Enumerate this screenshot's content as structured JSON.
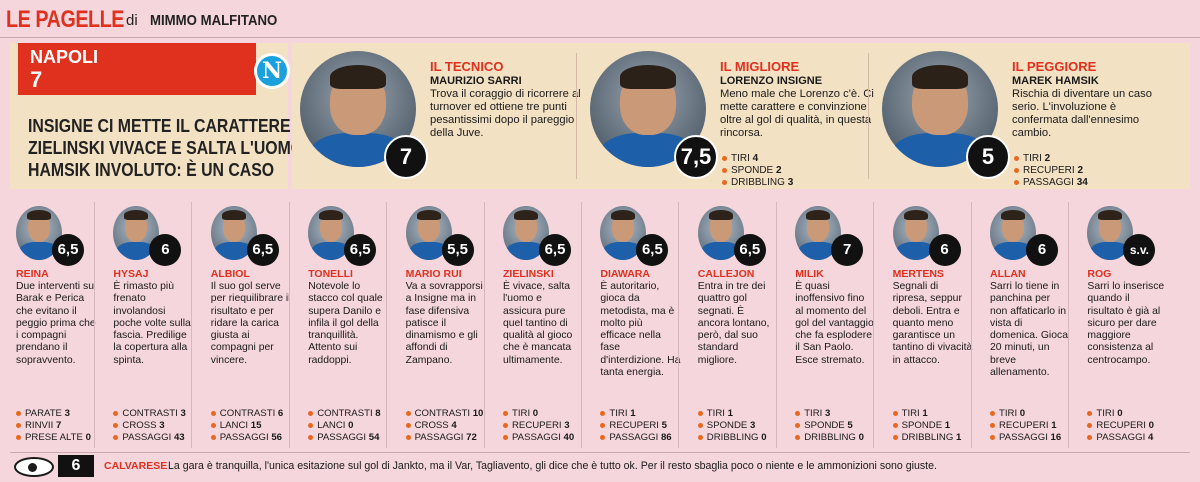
{
  "header": {
    "title": "LE PAGELLE",
    "by": "di",
    "author": "MIMMO MALFITANO"
  },
  "team": {
    "name": "NAPOLI",
    "vote": "7",
    "crest_letter": "N",
    "crest_color": "#1aa0dc",
    "headline": [
      "INSIGNE CI METTE IL CARATTERE",
      "ZIELINSKI VIVACE E SALTA L'UOMO",
      "HAMSIK INVOLUTO: È UN CASO"
    ]
  },
  "tops": [
    {
      "role": "IL TECNICO",
      "name": "MAURIZIO SARRI",
      "vote": "7",
      "desc": "Trova il coraggio di ricorrere al turnover ed ottiene tre punti pesantissimi dopo il pareggio della Juve.",
      "stats": []
    },
    {
      "role": "IL MIGLIORE",
      "name": "LORENZO INSIGNE",
      "vote": "7,5",
      "desc": "Meno male che Lorenzo c'è. Ci mette carattere e convinzione oltre al gol di qualità, in questa rincorsa.",
      "stats": [
        {
          "label": "TIRI",
          "value": "4"
        },
        {
          "label": "SPONDE",
          "value": "2"
        },
        {
          "label": "DRIBBLING",
          "value": "3"
        }
      ]
    },
    {
      "role": "IL PEGGIORE",
      "name": "MAREK HAMSIK",
      "vote": "5",
      "desc": "Rischia di diventare un caso serio. L'involuzione è confermata dall'ennesimo cambio.",
      "stats": [
        {
          "label": "TIRI",
          "value": "2"
        },
        {
          "label": "RECUPERI",
          "value": "2"
        },
        {
          "label": "PASSAGGI",
          "value": "34"
        }
      ]
    }
  ],
  "players": [
    {
      "name": "REINA",
      "vote": "6,5",
      "desc": "Due interventi su Barak e Perica che evitano il peggio prima che i compagni prendano il sopravvento.",
      "stats": [
        {
          "label": "PARATE",
          "value": "3"
        },
        {
          "label": "RINVII",
          "value": "7"
        },
        {
          "label": "PRESE ALTE",
          "value": "0"
        }
      ]
    },
    {
      "name": "HYSAJ",
      "vote": "6",
      "desc": "È rimasto più frenato involandosi poche volte sulla fascia. Predilige la copertura alla spinta.",
      "stats": [
        {
          "label": "CONTRASTI",
          "value": "3"
        },
        {
          "label": "CROSS",
          "value": "3"
        },
        {
          "label": "PASSAGGI",
          "value": "43"
        }
      ]
    },
    {
      "name": "ALBIOL",
      "vote": "6,5",
      "desc": "Il suo gol serve per riequilibrare il risultato e per ridare la carica giusta ai compagni per vincere.",
      "stats": [
        {
          "label": "CONTRASTI",
          "value": "6"
        },
        {
          "label": "LANCI",
          "value": "15"
        },
        {
          "label": "PASSAGGI",
          "value": "56"
        }
      ]
    },
    {
      "name": "TONELLI",
      "vote": "6,5",
      "desc": "Notevole lo stacco col quale supera Danilo e infila il gol della tranquillità. Attento sui raddoppi.",
      "stats": [
        {
          "label": "CONTRASTI",
          "value": "8"
        },
        {
          "label": "LANCI",
          "value": "0"
        },
        {
          "label": "PASSAGGI",
          "value": "54"
        }
      ]
    },
    {
      "name": "MARIO RUI",
      "vote": "5,5",
      "desc": "Va a sovrapporsi a Insigne ma in fase difensiva patisce il dinamismo e gli affondi di Zampano.",
      "stats": [
        {
          "label": "CONTRASTI",
          "value": "10"
        },
        {
          "label": "CROSS",
          "value": "4"
        },
        {
          "label": "PASSAGGI",
          "value": "72"
        }
      ]
    },
    {
      "name": "ZIELINSKI",
      "vote": "6,5",
      "desc": "È vivace, salta l'uomo e assicura pure quel tantino di qualità al gioco che è mancata ultimamente.",
      "stats": [
        {
          "label": "TIRI",
          "value": "0"
        },
        {
          "label": "RECUPERI",
          "value": "3"
        },
        {
          "label": "PASSAGGI",
          "value": "40"
        }
      ]
    },
    {
      "name": "DIAWARA",
      "vote": "6,5",
      "desc": "È autoritario, gioca da metodista, ma è molto più efficace nella fase d'interdizione. Ha tanta energia.",
      "stats": [
        {
          "label": "TIRI",
          "value": "1"
        },
        {
          "label": "RECUPERI",
          "value": "5"
        },
        {
          "label": "PASSAGGI",
          "value": "86"
        }
      ]
    },
    {
      "name": "CALLEJON",
      "vote": "6,5",
      "desc": "Entra in tre dei quattro gol segnati. È ancora lontano, però, dal suo standard migliore.",
      "stats": [
        {
          "label": "TIRI",
          "value": "1"
        },
        {
          "label": "SPONDE",
          "value": "3"
        },
        {
          "label": "DRIBBLING",
          "value": "0"
        }
      ]
    },
    {
      "name": "MILIK",
      "vote": "7",
      "desc": "È quasi inoffensivo fino al momento del gol del vantaggio che fa esplodere il San Paolo. Esce stremato.",
      "stats": [
        {
          "label": "TIRI",
          "value": "3"
        },
        {
          "label": "SPONDE",
          "value": "5"
        },
        {
          "label": "DRIBBLING",
          "value": "0"
        }
      ]
    },
    {
      "name": "MERTENS",
      "vote": "6",
      "desc": "Segnali di ripresa, seppur deboli. Entra e quanto meno garantisce un tantino di vivacità in attacco.",
      "stats": [
        {
          "label": "TIRI",
          "value": "1"
        },
        {
          "label": "SPONDE",
          "value": "1"
        },
        {
          "label": "DRIBBLING",
          "value": "1"
        }
      ]
    },
    {
      "name": "ALLAN",
      "vote": "6",
      "desc": "Sarri lo tiene in panchina per non affaticarlo in vista di domenica. Gioca 20 minuti, un breve allenamento.",
      "stats": [
        {
          "label": "TIRI",
          "value": "0"
        },
        {
          "label": "RECUPERI",
          "value": "1"
        },
        {
          "label": "PASSAGGI",
          "value": "16"
        }
      ]
    },
    {
      "name": "ROG",
      "vote": "s.v.",
      "desc": "Sarri lo inserisce quando il risultato è già al sicuro per dare maggiore consistenza al centrocampo.",
      "stats": [
        {
          "label": "TIRI",
          "value": "0"
        },
        {
          "label": "RECUPERI",
          "value": "0"
        },
        {
          "label": "PASSAGGI",
          "value": "4"
        }
      ]
    }
  ],
  "referee": {
    "vote": "6",
    "name": "CALVARESE",
    "text": "La gara è tranquilla, l'unica esitazione sul gol di Jankto, ma il Var, Tagliavento, gli dice che è tutto ok. Per il resto sbaglia poco o niente e le ammonizioni sono giuste."
  },
  "colors": {
    "accent": "#e0301e",
    "background": "#f4d6dc",
    "panel": "#f3e1c4",
    "stat_dot": "#e8681f"
  }
}
